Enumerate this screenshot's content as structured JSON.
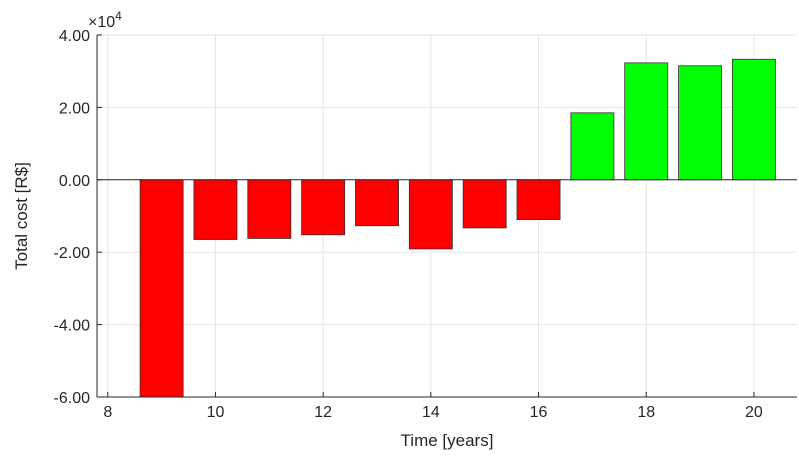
{
  "chart_data": {
    "type": "bar",
    "title": "",
    "xlabel": "Time [years]",
    "ylabel": "Total cost [R$]",
    "y_multiplier_label": "×10",
    "y_multiplier_exponent": "4",
    "x": [
      9,
      10,
      11,
      12,
      13,
      14,
      15,
      16,
      17,
      18,
      19,
      20
    ],
    "values": [
      -60000,
      -16500,
      -16200,
      -15200,
      -12700,
      -19100,
      -13300,
      -11000,
      18500,
      32300,
      31500,
      33300
    ],
    "xlim": [
      7.8,
      20.8
    ],
    "ylim": [
      -60000,
      40000
    ],
    "xticks": [
      8,
      10,
      12,
      14,
      16,
      18,
      20
    ],
    "yticks": [
      -60000,
      -40000,
      -20000,
      0,
      20000,
      40000
    ],
    "ytick_labels": [
      "-6.00",
      "-4.00",
      "-2.00",
      "0.00",
      "2.00",
      "4.00"
    ],
    "grid": true,
    "colors": {
      "negative": "#ff0000",
      "positive": "#00ff00",
      "bar_edge": "#333333",
      "grid": "#e6e6e6",
      "axis": "#262626",
      "zero_line": "#262626"
    }
  }
}
